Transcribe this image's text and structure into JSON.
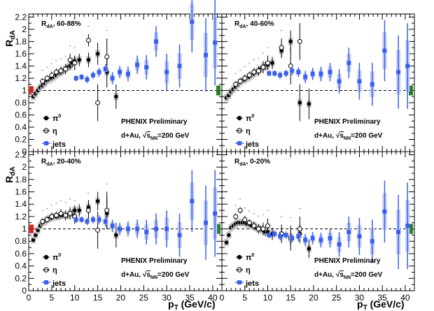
{
  "figure": {
    "ylabel": "R",
    "ylabel_sub": "dA",
    "xlabel": "p",
    "xlabel_sub": "T",
    "xlabel_unit": "(GeV/c)",
    "preliminary": "PHENIX Preliminary",
    "system": "d+Au,",
    "energy_sqrt": "s",
    "energy_sub": "NN",
    "energy_value": "=200 GeV",
    "colors": {
      "pi0": "#000000",
      "eta": "#000000",
      "jets": "#3a5ef0",
      "jets_band": "#c3cdf3",
      "sys_band": "#bdbdbd",
      "norm_left": "#e0201b",
      "norm_right": "#2a7d2a"
    }
  },
  "chart_data": [
    {
      "type": "scatter",
      "title": "R",
      "title_sub": "dA",
      "title_rest": ", 60-88%",
      "xlabel": "pT (GeV/c)",
      "ylabel": "RdA",
      "xlim": [
        0,
        42
      ],
      "ylim": [
        0,
        2.25
      ],
      "yticks": [
        "0",
        "0.2",
        "0.4",
        "0.6",
        "0.8",
        "1",
        "1.2",
        "1.4",
        "1.6",
        "1.8",
        "2",
        "2.2"
      ],
      "xticks": [],
      "legend": [
        "π",
        "η",
        "jets"
      ],
      "legend_sup": "0",
      "series": [
        {
          "name": "pi0",
          "marker": "filled-circle",
          "x": [
            1.0,
            1.5,
            2.0,
            2.5,
            3.0,
            3.5,
            4.0,
            4.5,
            5.0,
            5.5,
            6.0,
            6.5,
            7.0,
            7.5,
            8.0,
            8.5,
            9.0,
            9.5,
            10.0,
            11.0,
            13.0,
            15.0,
            17.0,
            19.0
          ],
          "y": [
            0.9,
            0.95,
            1.0,
            1.05,
            1.08,
            1.12,
            1.16,
            1.18,
            1.2,
            1.22,
            1.25,
            1.28,
            1.3,
            1.32,
            1.35,
            1.38,
            1.4,
            1.45,
            1.48,
            1.5,
            1.5,
            1.6,
            1.3,
            0.9
          ],
          "err": [
            0.02,
            0.02,
            0.02,
            0.02,
            0.02,
            0.02,
            0.02,
            0.02,
            0.02,
            0.03,
            0.03,
            0.03,
            0.04,
            0.04,
            0.05,
            0.05,
            0.06,
            0.07,
            0.08,
            0.1,
            0.12,
            0.18,
            0.25,
            0.2
          ]
        },
        {
          "name": "eta",
          "marker": "open-circle",
          "x": [
            3.0,
            4.0,
            5.0,
            6.0,
            7.0,
            8.0,
            9.0,
            10.0,
            13.0,
            15.0,
            17.0
          ],
          "y": [
            1.15,
            1.2,
            1.25,
            1.3,
            1.32,
            1.35,
            1.5,
            1.45,
            1.82,
            0.8,
            1.55
          ],
          "err": [
            0.05,
            0.05,
            0.06,
            0.06,
            0.07,
            0.08,
            0.1,
            0.12,
            0.1,
            0.3,
            0.3
          ]
        },
        {
          "name": "jets",
          "marker": "square",
          "x": [
            10.3,
            11.5,
            12.7,
            14.0,
            15.3,
            16.7,
            18.2,
            19.8,
            21.6,
            23.6,
            25.6,
            27.7,
            30.0,
            32.8,
            35.5,
            38.5,
            40.5
          ],
          "y": [
            1.2,
            1.22,
            1.18,
            1.25,
            1.3,
            1.35,
            1.2,
            1.3,
            1.27,
            1.42,
            1.38,
            1.8,
            1.3,
            1.4,
            2.12,
            1.58,
            1.78
          ],
          "err": [
            0.05,
            0.05,
            0.06,
            0.06,
            0.07,
            0.08,
            0.1,
            0.1,
            0.12,
            0.15,
            0.2,
            0.25,
            0.3,
            0.35,
            0.5,
            0.6,
            0.7
          ]
        }
      ]
    },
    {
      "type": "scatter",
      "title": "R",
      "title_sub": "dA",
      "title_rest": ", 40-60%",
      "xlabel": "pT (GeV/c)",
      "ylabel": "RdA",
      "xlim": [
        0,
        42
      ],
      "ylim": [
        0,
        2.25
      ],
      "yticks": [],
      "xticks": [],
      "legend": [
        "π",
        "η",
        "jets"
      ],
      "legend_sup": "0",
      "series": [
        {
          "name": "pi0",
          "marker": "filled-circle",
          "x": [
            1.0,
            1.5,
            2.0,
            2.5,
            3.0,
            3.5,
            4.0,
            4.5,
            5.0,
            5.5,
            6.0,
            6.5,
            7.0,
            7.5,
            8.0,
            8.5,
            9.0,
            9.5,
            10.0,
            11.0,
            13.0,
            15.0,
            17.0,
            19.0
          ],
          "y": [
            0.88,
            0.92,
            0.98,
            1.02,
            1.06,
            1.1,
            1.14,
            1.16,
            1.18,
            1.2,
            1.22,
            1.25,
            1.28,
            1.3,
            1.32,
            1.35,
            1.38,
            1.4,
            1.42,
            1.45,
            1.65,
            1.8,
            0.8,
            0.78
          ],
          "err": [
            0.02,
            0.02,
            0.02,
            0.02,
            0.02,
            0.02,
            0.02,
            0.02,
            0.02,
            0.03,
            0.03,
            0.03,
            0.04,
            0.04,
            0.05,
            0.05,
            0.06,
            0.07,
            0.08,
            0.1,
            0.12,
            0.18,
            0.3,
            0.25
          ]
        },
        {
          "name": "eta",
          "marker": "open-circle",
          "x": [
            3.0,
            4.0,
            5.0,
            6.0,
            7.0,
            8.0,
            9.0,
            10.0,
            13.0,
            15.0,
            17.0
          ],
          "y": [
            1.1,
            1.15,
            1.2,
            1.25,
            1.3,
            1.32,
            1.38,
            1.45,
            1.7,
            1.4,
            1.8
          ],
          "err": [
            0.05,
            0.05,
            0.06,
            0.06,
            0.07,
            0.08,
            0.1,
            0.12,
            0.15,
            0.3,
            0.3
          ]
        },
        {
          "name": "jets",
          "marker": "square",
          "x": [
            10.3,
            11.5,
            12.7,
            14.0,
            15.3,
            16.7,
            18.2,
            19.8,
            21.6,
            23.6,
            25.6,
            27.7,
            30.0,
            32.8,
            35.5,
            38.5,
            40.5
          ],
          "y": [
            1.28,
            1.28,
            1.25,
            1.28,
            1.32,
            1.3,
            1.22,
            1.27,
            1.27,
            1.3,
            1.15,
            1.45,
            1.15,
            1.1,
            1.65,
            1.3,
            1.4
          ],
          "err": [
            0.05,
            0.05,
            0.06,
            0.06,
            0.07,
            0.08,
            0.1,
            0.1,
            0.12,
            0.15,
            0.2,
            0.25,
            0.3,
            0.35,
            0.5,
            0.6,
            0.7
          ]
        }
      ]
    },
    {
      "type": "scatter",
      "title": "R",
      "title_sub": "dA",
      "title_rest": ", 20-40%",
      "xlabel": "pT (GeV/c)",
      "ylabel": "RdA",
      "xlim": [
        0,
        42
      ],
      "ylim": [
        0,
        2.25
      ],
      "yticks": [
        "0",
        "0.2",
        "0.4",
        "0.6",
        "0.8",
        "1",
        "1.2",
        "1.4",
        "1.6",
        "1.8",
        "2",
        "2.2"
      ],
      "xticks": [
        "0",
        "5",
        "10",
        "15",
        "20",
        "25",
        "30",
        "35",
        "40"
      ],
      "legend": [
        "π",
        "η",
        "jets"
      ],
      "legend_sup": "0",
      "series": [
        {
          "name": "pi0",
          "marker": "filled-circle",
          "x": [
            1.0,
            1.5,
            2.0,
            2.5,
            3.0,
            3.5,
            4.0,
            4.5,
            5.0,
            5.5,
            6.0,
            6.5,
            7.0,
            7.5,
            8.0,
            8.5,
            9.0,
            9.5,
            10.0,
            11.0,
            13.0,
            15.0,
            17.0,
            19.0
          ],
          "y": [
            0.82,
            0.9,
            0.98,
            1.05,
            1.1,
            1.12,
            1.15,
            1.17,
            1.18,
            1.2,
            1.2,
            1.2,
            1.22,
            1.22,
            1.22,
            1.22,
            1.25,
            1.25,
            1.3,
            1.3,
            1.35,
            1.45,
            1.25,
            0.9
          ],
          "err": [
            0.02,
            0.02,
            0.02,
            0.02,
            0.02,
            0.02,
            0.02,
            0.02,
            0.02,
            0.03,
            0.03,
            0.03,
            0.04,
            0.04,
            0.05,
            0.05,
            0.06,
            0.07,
            0.08,
            0.1,
            0.12,
            0.15,
            0.25,
            0.2
          ]
        },
        {
          "name": "eta",
          "marker": "open-circle",
          "x": [
            3.0,
            4.0,
            5.0,
            6.0,
            7.0,
            8.0,
            9.0,
            10.0,
            13.0,
            15.0,
            17.0
          ],
          "y": [
            1.12,
            1.15,
            1.2,
            1.22,
            1.25,
            1.22,
            1.25,
            1.2,
            1.3,
            0.98,
            1.3
          ],
          "err": [
            0.05,
            0.05,
            0.06,
            0.06,
            0.07,
            0.08,
            0.1,
            0.12,
            0.15,
            0.3,
            0.3
          ]
        },
        {
          "name": "jets",
          "marker": "square",
          "x": [
            10.3,
            11.5,
            12.7,
            14.0,
            15.3,
            16.7,
            18.2,
            19.8,
            21.6,
            23.6,
            25.6,
            27.7,
            30.0,
            32.8,
            35.5,
            38.5,
            40.5
          ],
          "y": [
            1.15,
            1.15,
            1.12,
            1.15,
            1.15,
            1.12,
            1.05,
            1.0,
            1.0,
            1.0,
            0.95,
            1.0,
            1.0,
            0.9,
            1.45,
            1.1,
            1.25
          ],
          "err": [
            0.05,
            0.05,
            0.06,
            0.06,
            0.07,
            0.08,
            0.1,
            0.1,
            0.12,
            0.15,
            0.2,
            0.25,
            0.3,
            0.35,
            0.5,
            0.6,
            0.7
          ]
        }
      ]
    },
    {
      "type": "scatter",
      "title": "R",
      "title_sub": "dA",
      "title_rest": ", 0-20%",
      "xlabel": "pT (GeV/c)",
      "ylabel": "RdA",
      "xlim": [
        0,
        42
      ],
      "ylim": [
        0,
        2.25
      ],
      "yticks": [],
      "xticks": [
        "0",
        "5",
        "10",
        "15",
        "20",
        "25",
        "30",
        "35",
        "40"
      ],
      "legend": [
        "π",
        "η",
        "jets"
      ],
      "legend_sup": "0",
      "series": [
        {
          "name": "pi0",
          "marker": "filled-circle",
          "x": [
            1.0,
            1.5,
            2.0,
            2.5,
            3.0,
            3.5,
            4.0,
            4.5,
            5.0,
            5.5,
            6.0,
            6.5,
            7.0,
            7.5,
            8.0,
            8.5,
            9.0,
            9.5,
            10.0,
            11.0,
            13.0,
            15.0,
            17.0,
            19.0
          ],
          "y": [
            0.78,
            0.9,
            1.02,
            1.05,
            1.08,
            1.1,
            1.1,
            1.1,
            1.1,
            1.08,
            1.08,
            1.05,
            1.05,
            1.02,
            1.0,
            1.0,
            0.98,
            0.95,
            0.95,
            0.92,
            0.9,
            0.85,
            0.92,
            0.68
          ],
          "err": [
            0.02,
            0.02,
            0.02,
            0.02,
            0.02,
            0.02,
            0.02,
            0.02,
            0.02,
            0.03,
            0.03,
            0.03,
            0.04,
            0.04,
            0.05,
            0.05,
            0.06,
            0.07,
            0.08,
            0.1,
            0.1,
            0.12,
            0.15,
            0.15
          ]
        },
        {
          "name": "eta",
          "marker": "open-circle",
          "x": [
            3.0,
            4.0,
            5.0,
            6.0,
            7.0,
            8.0,
            9.0,
            10.0,
            13.0,
            15.0,
            17.0
          ],
          "y": [
            1.2,
            1.3,
            1.15,
            1.1,
            1.05,
            1.0,
            1.0,
            1.05,
            0.92,
            0.85,
            1.0
          ],
          "err": [
            0.05,
            0.05,
            0.06,
            0.06,
            0.07,
            0.08,
            0.1,
            0.12,
            0.15,
            0.2,
            0.2
          ]
        },
        {
          "name": "jets",
          "marker": "square",
          "x": [
            10.3,
            11.5,
            12.7,
            14.0,
            15.3,
            16.7,
            18.2,
            19.8,
            21.6,
            23.6,
            25.6,
            27.7,
            30.0,
            32.8,
            35.5,
            38.5,
            40.5
          ],
          "y": [
            0.9,
            0.92,
            0.88,
            0.9,
            0.85,
            0.88,
            0.82,
            0.85,
            0.82,
            0.85,
            0.75,
            0.95,
            0.88,
            0.8,
            1.28,
            0.95,
            1.05
          ],
          "err": [
            0.05,
            0.05,
            0.06,
            0.06,
            0.07,
            0.08,
            0.1,
            0.1,
            0.12,
            0.15,
            0.2,
            0.25,
            0.3,
            0.35,
            0.5,
            0.6,
            0.7
          ]
        }
      ]
    }
  ]
}
